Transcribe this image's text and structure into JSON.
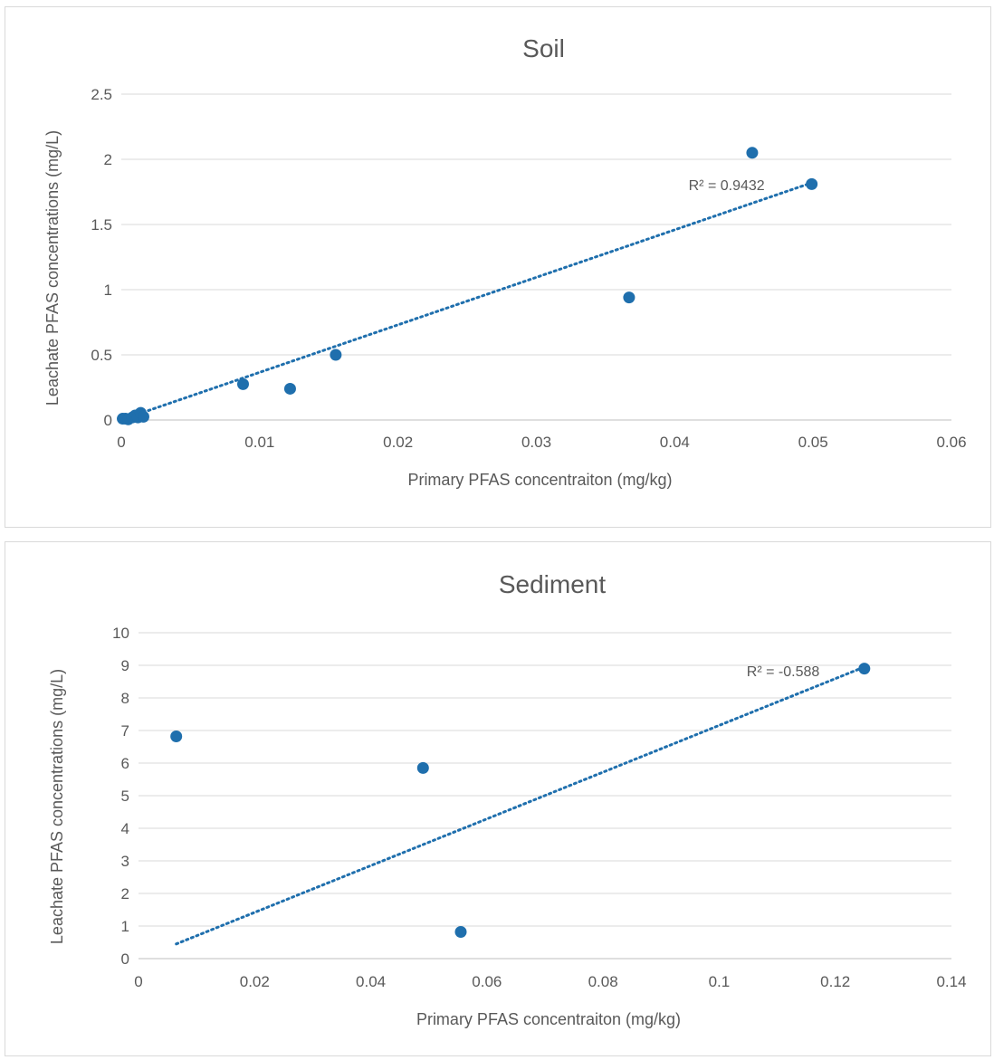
{
  "chart_data": [
    {
      "id": "soil",
      "type": "scatter",
      "title": "Soil",
      "xlabel": "Primary PFAS concentraiton (mg/kg)",
      "ylabel": "Leachate PFAS concentrations (mg/L)",
      "xlim": [
        0,
        0.06
      ],
      "ylim": [
        0,
        2.5
      ],
      "x_ticks": [
        0,
        0.01,
        0.02,
        0.03,
        0.04,
        0.05,
        0.06
      ],
      "y_ticks": [
        0,
        0.5,
        1,
        1.5,
        2,
        2.5
      ],
      "grid": true,
      "legend": "none",
      "color": "#1f6fad",
      "points": [
        {
          "x": 0.0001,
          "y": 0.01
        },
        {
          "x": 0.0003,
          "y": 0.01
        },
        {
          "x": 0.0005,
          "y": 0.005
        },
        {
          "x": 0.0008,
          "y": 0.02
        },
        {
          "x": 0.001,
          "y": 0.035
        },
        {
          "x": 0.0012,
          "y": 0.02
        },
        {
          "x": 0.0014,
          "y": 0.055
        },
        {
          "x": 0.0016,
          "y": 0.025
        },
        {
          "x": 0.0088,
          "y": 0.275
        },
        {
          "x": 0.0122,
          "y": 0.24
        },
        {
          "x": 0.0155,
          "y": 0.5
        },
        {
          "x": 0.0367,
          "y": 0.94
        },
        {
          "x": 0.0456,
          "y": 2.05
        },
        {
          "x": 0.0499,
          "y": 1.81
        }
      ],
      "trendline": {
        "x": [
          0.0001,
          0.0499
        ],
        "y": [
          0.005,
          1.82
        ],
        "style": "dotted"
      },
      "r2_label": "R² = 0.9432"
    },
    {
      "id": "sediment",
      "type": "scatter",
      "title": "Sediment",
      "xlabel": "Primary PFAS concentraiton (mg/kg)",
      "ylabel": "Leachate PFAS concentrations (mg/L)",
      "xlim": [
        0,
        0.14
      ],
      "ylim": [
        0,
        10
      ],
      "x_ticks": [
        0,
        0.02,
        0.04,
        0.06,
        0.08,
        0.1,
        0.12,
        0.14
      ],
      "y_ticks": [
        0,
        1,
        2,
        3,
        4,
        5,
        6,
        7,
        8,
        9,
        10
      ],
      "grid": true,
      "legend": "none",
      "color": "#1f6fad",
      "points": [
        {
          "x": 0.0065,
          "y": 6.82
        },
        {
          "x": 0.049,
          "y": 5.85
        },
        {
          "x": 0.0555,
          "y": 0.82
        },
        {
          "x": 0.125,
          "y": 8.9
        }
      ],
      "trendline": {
        "x": [
          0.0065,
          0.125
        ],
        "y": [
          0.45,
          8.95
        ],
        "style": "dotted"
      },
      "r2_label": "R² = -0.588"
    }
  ]
}
